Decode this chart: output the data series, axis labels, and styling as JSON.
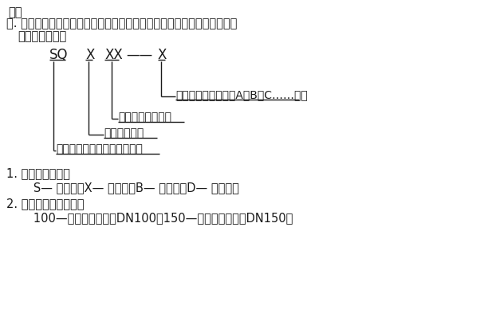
{
  "bg_color": "#ffffff",
  "text_color": "#1a1a1a",
  "top_text": "的。",
  "title_line1": "二. 本图集系采用公安消防部门批准生产消防水泵接合器厂成套产品，其型",
  "title_line2": "号表示方法为：",
  "code_sq": "SQ",
  "code_x1": "X",
  "code_xx": "XX",
  "code_dash": "——",
  "code_x2": "X",
  "label1": "同类产品顺序号，用A、B、C……表示",
  "label2": "出口公称通径代号",
  "label3": "安装形式代号",
  "label4": "消防水泵接合器（专用代号）",
  "section1_title": "1. 安装形式代号：",
  "section1_body": "   S— 地上式；X— 地下式；B— 墙壁式；D— 多用式。",
  "section2_title": "2. 出口公称通径代号：",
  "section2_body": "   100—表示公称通径为DN100；150—表示公称通径为DN150。"
}
